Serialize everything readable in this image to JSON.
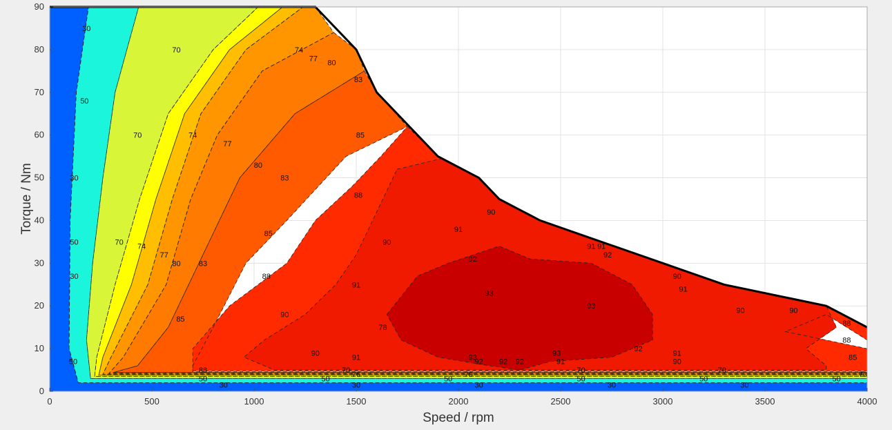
{
  "chart_data": {
    "type": "contour",
    "xlabel": "Speed / rpm",
    "ylabel": "Torque / Nm",
    "xlim": [
      0,
      4000
    ],
    "ylim": [
      0,
      90
    ],
    "x_ticks": [
      0,
      500,
      1000,
      1500,
      2000,
      2500,
      3000,
      3500,
      4000
    ],
    "y_ticks": [
      0,
      10,
      20,
      30,
      40,
      50,
      60,
      70,
      80,
      90
    ],
    "grid": true,
    "contour_levels": [
      30,
      50,
      70,
      74,
      77,
      80,
      83,
      85,
      88,
      90,
      91,
      92,
      93
    ],
    "level_colors": {
      "below_30": "#00008f",
      "30": "#0060ff",
      "50": "#1bf5dc",
      "70": "#d8f538",
      "74": "#ffff00",
      "77": "#ffbf00",
      "80": "#ff9600",
      "83": "#ff7a00",
      "85": "#ff5a00",
      "88": "#ff2a00",
      "90": "#f01a00",
      "92": "#c80000"
    },
    "torque_speed_envelope": [
      {
        "x": 0,
        "y": 90
      },
      {
        "x": 1300,
        "y": 90
      },
      {
        "x": 1500,
        "y": 80
      },
      {
        "x": 1600,
        "y": 70
      },
      {
        "x": 1900,
        "y": 55
      },
      {
        "x": 2100,
        "y": 50
      },
      {
        "x": 2200,
        "y": 45
      },
      {
        "x": 2400,
        "y": 40
      },
      {
        "x": 2700,
        "y": 35
      },
      {
        "x": 3000,
        "y": 30
      },
      {
        "x": 3300,
        "y": 25
      },
      {
        "x": 3800,
        "y": 20
      },
      {
        "x": 4000,
        "y": 15
      }
    ],
    "regions": [
      {
        "level": "30",
        "points": [
          [
            0,
            90
          ],
          [
            190,
            90
          ],
          [
            130,
            70
          ],
          [
            100,
            40
          ],
          [
            95,
            10
          ],
          [
            140,
            2
          ],
          [
            4000,
            2
          ],
          [
            4000,
            0
          ],
          [
            0,
            0
          ]
        ]
      },
      {
        "level": "50",
        "points": [
          [
            190,
            90
          ],
          [
            435,
            90
          ],
          [
            320,
            70
          ],
          [
            260,
            50
          ],
          [
            210,
            30
          ],
          [
            180,
            12
          ],
          [
            200,
            3
          ],
          [
            4000,
            3
          ],
          [
            4000,
            2
          ],
          [
            140,
            2
          ],
          [
            95,
            10
          ],
          [
            100,
            40
          ],
          [
            130,
            70
          ]
        ]
      },
      {
        "level": "70",
        "points": [
          [
            435,
            90
          ],
          [
            1020,
            90
          ],
          [
            800,
            80
          ],
          [
            580,
            65
          ],
          [
            440,
            45
          ],
          [
            320,
            25
          ],
          [
            230,
            8
          ],
          [
            220,
            3.5
          ],
          [
            4000,
            3.5
          ],
          [
            4000,
            3
          ],
          [
            200,
            3
          ],
          [
            180,
            12
          ],
          [
            210,
            30
          ],
          [
            260,
            50
          ],
          [
            320,
            70
          ]
        ]
      },
      {
        "level": "74",
        "points": [
          [
            1020,
            90
          ],
          [
            1140,
            90
          ],
          [
            880,
            80
          ],
          [
            660,
            65
          ],
          [
            520,
            45
          ],
          [
            400,
            25
          ],
          [
            260,
            8
          ],
          [
            240,
            3.8
          ],
          [
            4000,
            3.8
          ],
          [
            4000,
            3.5
          ],
          [
            220,
            3.5
          ],
          [
            230,
            8
          ],
          [
            320,
            25
          ],
          [
            440,
            45
          ],
          [
            580,
            65
          ],
          [
            800,
            80
          ]
        ]
      },
      {
        "level": "77",
        "points": [
          [
            1140,
            90
          ],
          [
            1240,
            90
          ],
          [
            960,
            80
          ],
          [
            740,
            65
          ],
          [
            600,
            45
          ],
          [
            480,
            25
          ],
          [
            300,
            8
          ],
          [
            260,
            4
          ],
          [
            4000,
            4
          ],
          [
            4000,
            3.8
          ],
          [
            240,
            3.8
          ],
          [
            260,
            8
          ],
          [
            400,
            25
          ],
          [
            520,
            45
          ],
          [
            660,
            65
          ],
          [
            880,
            80
          ]
        ]
      },
      {
        "level": "80",
        "points": [
          [
            1240,
            90
          ],
          [
            1300,
            90
          ],
          [
            1390,
            84
          ],
          [
            1040,
            75
          ],
          [
            820,
            60
          ],
          [
            690,
            45
          ],
          [
            570,
            25
          ],
          [
            360,
            8
          ],
          [
            290,
            4.2
          ],
          [
            4000,
            4.2
          ],
          [
            4000,
            4
          ],
          [
            260,
            4
          ],
          [
            300,
            8
          ],
          [
            480,
            25
          ],
          [
            600,
            45
          ],
          [
            740,
            65
          ],
          [
            960,
            80
          ]
        ]
      },
      {
        "level": "83",
        "points": [
          [
            1390,
            84
          ],
          [
            1500,
            80
          ],
          [
            1540,
            75
          ],
          [
            1200,
            65
          ],
          [
            930,
            50
          ],
          [
            780,
            35
          ],
          [
            580,
            15
          ],
          [
            430,
            6
          ],
          [
            310,
            4.4
          ],
          [
            4000,
            4.4
          ],
          [
            4000,
            4.2
          ],
          [
            290,
            4.2
          ],
          [
            360,
            8
          ],
          [
            570,
            25
          ],
          [
            690,
            45
          ],
          [
            820,
            60
          ],
          [
            1040,
            75
          ]
        ]
      },
      {
        "level": "85",
        "points": [
          [
            1540,
            75
          ],
          [
            1600,
            70
          ],
          [
            1750,
            62
          ],
          [
            1450,
            55
          ],
          [
            1160,
            40
          ],
          [
            960,
            30
          ],
          [
            800,
            15
          ],
          [
            700,
            6
          ],
          [
            700,
            4.6
          ],
          [
            4000,
            4.6
          ],
          [
            4000,
            4.4
          ],
          [
            310,
            4.4
          ],
          [
            430,
            6
          ],
          [
            580,
            15
          ],
          [
            780,
            35
          ],
          [
            930,
            50
          ],
          [
            1200,
            65
          ]
        ]
      },
      {
        "level": "88",
        "points": [
          [
            1750,
            62
          ],
          [
            1900,
            55
          ],
          [
            2100,
            50
          ],
          [
            2200,
            45
          ],
          [
            2400,
            40
          ],
          [
            2700,
            35
          ],
          [
            3000,
            30
          ],
          [
            3300,
            25
          ],
          [
            3800,
            20
          ],
          [
            4000,
            15
          ],
          [
            4000,
            12
          ],
          [
            3800,
            18
          ],
          [
            3600,
            14
          ],
          [
            4000,
            10
          ],
          [
            4000,
            4.8
          ],
          [
            700,
            4.8
          ],
          [
            700,
            10
          ],
          [
            880,
            20
          ],
          [
            1160,
            30
          ],
          [
            1300,
            40
          ],
          [
            1480,
            48
          ],
          [
            1620,
            55
          ]
        ]
      },
      {
        "level": "90",
        "points": [
          [
            1700,
            52
          ],
          [
            1960,
            55
          ],
          [
            2100,
            50
          ],
          [
            2200,
            45
          ],
          [
            2400,
            40
          ],
          [
            2700,
            35
          ],
          [
            3000,
            30
          ],
          [
            3300,
            25
          ],
          [
            3800,
            20
          ],
          [
            3850,
            15
          ],
          [
            3700,
            10
          ],
          [
            3800,
            6
          ],
          [
            3800,
            5
          ],
          [
            1100,
            5
          ],
          [
            950,
            8
          ],
          [
            1050,
            12
          ],
          [
            1250,
            18
          ],
          [
            1400,
            25
          ],
          [
            1500,
            32
          ],
          [
            1600,
            42
          ]
        ]
      },
      {
        "level": "92",
        "points": [
          [
            1650,
            18
          ],
          [
            1800,
            27
          ],
          [
            1950,
            30
          ],
          [
            2200,
            34
          ],
          [
            2350,
            31
          ],
          [
            2650,
            30
          ],
          [
            2850,
            25
          ],
          [
            2950,
            18
          ],
          [
            2950,
            12
          ],
          [
            2750,
            8
          ],
          [
            2450,
            7
          ],
          [
            2300,
            5
          ],
          [
            2150,
            6
          ],
          [
            1900,
            8
          ],
          [
            1720,
            12
          ]
        ]
      }
    ],
    "contour_label_values": [
      "30",
      "50",
      "70",
      "74",
      "77",
      "80",
      "83",
      "85",
      "88",
      "90",
      "91",
      "92",
      "93"
    ]
  }
}
